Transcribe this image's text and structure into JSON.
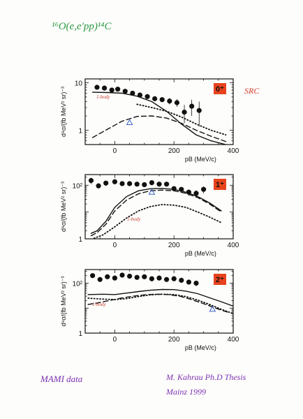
{
  "annotations": {
    "title": "¹⁶O(e,e'pp)¹⁴C",
    "source_label": "SRC",
    "origin_left": "MAMI data",
    "author_lines": [
      "M. Kahrau   Ph.D Thesis",
      "Mainz   1999"
    ]
  },
  "colors": {
    "title": "#2e9a45",
    "source_label": "#d23a2a",
    "origin": "#7a2fb0",
    "badge": "#e8431e",
    "note": "#c63a2a",
    "marker": "#3a64c8"
  },
  "chart_data": [
    {
      "type": "scatter",
      "state_badge": "0⁺",
      "ylabel": "d⁸σ/(fb MeV² sr)⁻³",
      "xlabel": "pB (MeV/c)",
      "xlim": [
        -100,
        400
      ],
      "ylim": [
        0.5,
        12
      ],
      "yscale": "log",
      "y_ticks": [
        1,
        10
      ],
      "y_tick_labels": [
        "1",
        "10"
      ],
      "x_ticks": [
        0,
        200,
        400
      ],
      "x_tick_labels": [
        "0",
        "200",
        "400"
      ],
      "curve_note": "1-body",
      "marker": {
        "symbol": "triangle",
        "x": 50,
        "y": 1.45
      },
      "series": [
        {
          "style": "solid",
          "x": [
            -75,
            -25,
            25,
            75,
            125,
            175,
            225,
            275,
            325,
            375
          ],
          "y": [
            6.3,
            6.2,
            6.0,
            5.2,
            4.0,
            2.5,
            1.35,
            0.8,
            0.6,
            0.5
          ]
        },
        {
          "style": "dashed",
          "x": [
            -75,
            -25,
            25,
            75,
            125,
            175,
            225,
            275,
            325,
            375
          ],
          "y": [
            0.7,
            1.05,
            1.55,
            1.95,
            2.0,
            1.8,
            1.4,
            1.0,
            0.75,
            0.58
          ]
        },
        {
          "style": "dotted",
          "x": [
            75,
            125,
            175,
            225,
            275,
            325,
            375
          ],
          "y": [
            3.5,
            3.0,
            2.5,
            1.9,
            1.35,
            1.0,
            0.8
          ]
        },
        {
          "style": "points",
          "x": [
            -60,
            -35,
            -10,
            10,
            35,
            60,
            85,
            110,
            135,
            160,
            185,
            210,
            235,
            260,
            285
          ],
          "y": [
            8.0,
            7.7,
            7.0,
            7.3,
            6.6,
            6.0,
            5.5,
            5.1,
            4.6,
            4.4,
            4.1,
            3.8,
            2.4,
            3.2,
            2.6
          ],
          "yerr": [
            0.5,
            0.5,
            0.5,
            0.5,
            0.5,
            0.5,
            0.5,
            0.5,
            0.5,
            0.5,
            0.6,
            0.7,
            1.0,
            1.2,
            1.4
          ]
        }
      ]
    },
    {
      "type": "scatter",
      "state_badge": "1⁺",
      "ylabel": "d⁸σ/(fb MeV² sr)⁻³",
      "xlabel": "pB (MeV/c)",
      "xlim": [
        -100,
        400
      ],
      "ylim": [
        1,
        250
      ],
      "yscale": "log",
      "y_ticks": [
        1,
        100
      ],
      "y_tick_labels": [
        "1",
        "10²"
      ],
      "x_ticks": [
        0,
        200,
        400
      ],
      "x_tick_labels": [
        "0",
        "200",
        "400"
      ],
      "curve_note": "1-body",
      "marker": {
        "symbol": "triangle",
        "x": 125,
        "y": 55
      },
      "series": [
        {
          "style": "solid",
          "x": [
            -80,
            -60,
            -30,
            0,
            40,
            80,
            120,
            160,
            200,
            240,
            280,
            320,
            360
          ],
          "y": [
            1.6,
            2.0,
            4.5,
            15,
            38,
            62,
            74,
            76,
            70,
            55,
            38,
            22,
            11
          ]
        },
        {
          "style": "dashed",
          "x": [
            -80,
            -60,
            -30,
            0,
            40,
            80,
            120,
            160,
            200,
            240,
            280,
            320,
            360
          ],
          "y": [
            1.3,
            1.7,
            3.5,
            11,
            28,
            48,
            62,
            66,
            62,
            50,
            35,
            20,
            10
          ]
        },
        {
          "style": "dotted",
          "x": [
            -70,
            -40,
            0,
            40,
            80,
            120,
            160,
            200,
            240,
            280,
            320,
            360
          ],
          "y": [
            1.05,
            1.4,
            2.8,
            6,
            11,
            16,
            19,
            18,
            15,
            10,
            6.5,
            4
          ]
        },
        {
          "style": "points",
          "x": [
            -80,
            -55,
            -30,
            0,
            25,
            50,
            75,
            100,
            125,
            150,
            175,
            200,
            225,
            250,
            275,
            300
          ],
          "y": [
            150,
            95,
            120,
            135,
            115,
            115,
            110,
            105,
            125,
            110,
            110,
            75,
            70,
            55,
            50,
            70
          ],
          "yerr": [
            40,
            20,
            25,
            25,
            20,
            20,
            20,
            20,
            25,
            20,
            20,
            15,
            15,
            15,
            15,
            20
          ]
        }
      ]
    },
    {
      "type": "scatter",
      "state_badge": "2⁺",
      "ylabel": "d⁸σ/(fb MeV² sr)⁻³",
      "xlabel": "pB (MeV/c)",
      "xlim": [
        -100,
        400
      ],
      "ylim": [
        1,
        350
      ],
      "yscale": "log",
      "y_ticks": [
        1,
        100
      ],
      "y_tick_labels": [
        "1",
        "10²"
      ],
      "x_ticks": [
        0,
        200,
        400
      ],
      "x_tick_labels": [
        "0",
        "200",
        "400"
      ],
      "curve_note": "1-body",
      "marker": {
        "symbol": "triangle",
        "x": 330,
        "y": 9
      },
      "series": [
        {
          "style": "solid",
          "x": [
            -90,
            -40,
            0,
            40,
            80,
            120,
            160,
            200,
            240,
            280,
            320,
            360,
            400
          ],
          "y": [
            35,
            36,
            35,
            40,
            46,
            52,
            56,
            55,
            48,
            38,
            26,
            18,
            12
          ]
        },
        {
          "style": "dashed",
          "x": [
            -90,
            -60,
            -20,
            20,
            60,
            100,
            140,
            180,
            220,
            260,
            300,
            340,
            380
          ],
          "y": [
            14,
            16,
            20,
            25,
            30,
            34,
            36,
            35,
            30,
            22,
            15,
            10,
            7
          ]
        },
        {
          "style": "dotted",
          "x": [
            -90,
            -40,
            0,
            40,
            80,
            120,
            160,
            200,
            240,
            280,
            320,
            360,
            400
          ],
          "y": [
            25,
            23,
            22,
            24,
            29,
            34,
            36,
            35,
            29,
            21,
            14,
            9,
            6
          ]
        },
        {
          "style": "points",
          "x": [
            -75,
            -50,
            -25,
            0,
            25,
            50,
            75,
            100,
            125,
            150,
            175,
            200,
            225,
            250,
            275
          ],
          "y": [
            200,
            140,
            180,
            160,
            210,
            190,
            170,
            180,
            150,
            160,
            140,
            150,
            130,
            110,
            100
          ],
          "yerr": [
            25,
            20,
            25,
            20,
            25,
            25,
            20,
            20,
            20,
            20,
            20,
            20,
            20,
            20,
            25
          ]
        }
      ]
    }
  ]
}
